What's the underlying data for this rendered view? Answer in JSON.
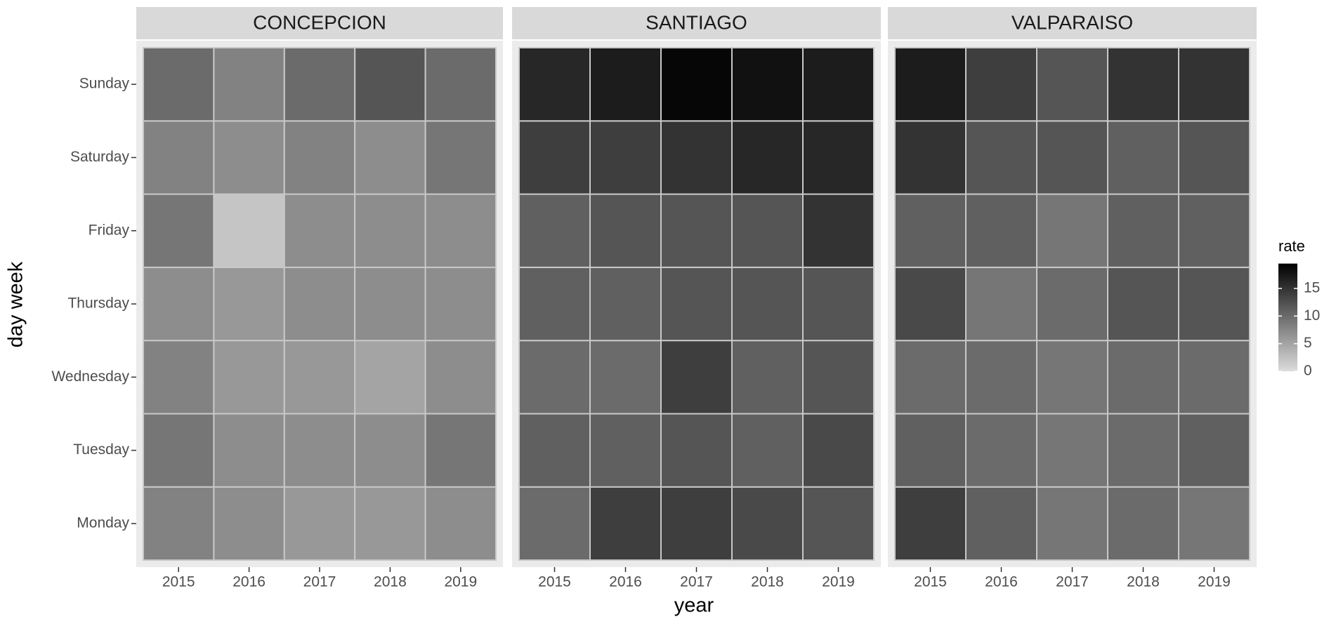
{
  "chart_data": {
    "type": "heatmap",
    "x_label": "year",
    "y_label": "day week",
    "categories": [
      "2015",
      "2016",
      "2017",
      "2018",
      "2019"
    ],
    "y_categories": [
      "Monday",
      "Tuesday",
      "Wednesday",
      "Thursday",
      "Friday",
      "Saturday",
      "Sunday"
    ],
    "facets": [
      {
        "name": "CONCEPCION",
        "values": [
          [
            8,
            7,
            6,
            6,
            7
          ],
          [
            9,
            7,
            7,
            7,
            9
          ],
          [
            8,
            6,
            6,
            5,
            7
          ],
          [
            7,
            6,
            7,
            7,
            7
          ],
          [
            9,
            2,
            7,
            7,
            7
          ],
          [
            8,
            7,
            8,
            7,
            9
          ],
          [
            10,
            8,
            10,
            12,
            10
          ]
        ]
      },
      {
        "name": "SANTIAGO",
        "values": [
          [
            10,
            14,
            14,
            13,
            12
          ],
          [
            11,
            11,
            12,
            11,
            13
          ],
          [
            10,
            10,
            14,
            11,
            12
          ],
          [
            11,
            11,
            12,
            12,
            12
          ],
          [
            11,
            12,
            12,
            12,
            15
          ],
          [
            14,
            14,
            15,
            16,
            16
          ],
          [
            16,
            17,
            19,
            18,
            17
          ]
        ]
      },
      {
        "name": "VALPARAISO",
        "values": [
          [
            14,
            11,
            9,
            10,
            9
          ],
          [
            11,
            10,
            9,
            10,
            11
          ],
          [
            10,
            10,
            9,
            10,
            10
          ],
          [
            13,
            9,
            10,
            12,
            12
          ],
          [
            11,
            11,
            9,
            11,
            11
          ],
          [
            15,
            12,
            12,
            11,
            12
          ],
          [
            17,
            14,
            12,
            15,
            15
          ]
        ]
      }
    ],
    "legend_title": "rate",
    "fill_lim": [
      0,
      19.5
    ],
    "fill_ticks": [
      0,
      5,
      10,
      15
    ],
    "low_color": "#dcdcdc",
    "high_color": "#000000"
  }
}
